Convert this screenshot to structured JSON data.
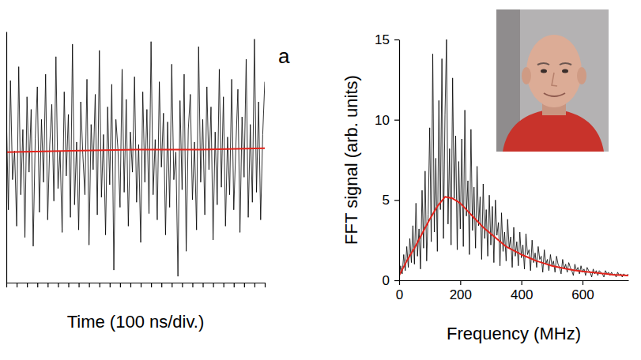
{
  "chart_data": [
    {
      "type": "line",
      "annotations": [
        "a"
      ],
      "xlabel": "Time (100 ns/div.)",
      "xlim": [
        0,
        1000
      ],
      "ylim": [
        -1,
        1
      ],
      "xticks": [
        0,
        40,
        80,
        120,
        160,
        200,
        240,
        280,
        320,
        360,
        400,
        440,
        480,
        520,
        560,
        600,
        640,
        680,
        720,
        760,
        800,
        840,
        880,
        920,
        960,
        1000
      ],
      "tick_labels": false,
      "series": [
        {
          "color": "#000000",
          "x": [
            0,
            8,
            16,
            24,
            32,
            40,
            48,
            56,
            64,
            72,
            80,
            88,
            96,
            104,
            112,
            120,
            128,
            136,
            144,
            152,
            160,
            168,
            176,
            184,
            192,
            200,
            208,
            216,
            224,
            232,
            240,
            248,
            256,
            264,
            272,
            280,
            288,
            296,
            304,
            312,
            320,
            328,
            336,
            344,
            352,
            360,
            368,
            376,
            384,
            392,
            400,
            408,
            416,
            424,
            432,
            440,
            448,
            456,
            464,
            472,
            480,
            488,
            496,
            504,
            512,
            520,
            528,
            536,
            544,
            552,
            560,
            568,
            576,
            584,
            592,
            600,
            608,
            616,
            624,
            632,
            640,
            648,
            656,
            664,
            672,
            680,
            688,
            696,
            704,
            712,
            720,
            728,
            736,
            744,
            752,
            760,
            768,
            776,
            784,
            792,
            800,
            808,
            816,
            824,
            832,
            840,
            848,
            856,
            864,
            872,
            880,
            888,
            896,
            904,
            912,
            920,
            928,
            936,
            944,
            952,
            960,
            968,
            976,
            984,
            992,
            1000
          ],
          "values": [
            0.35,
            -0.42,
            0.61,
            -0.18,
            0.05,
            -0.55,
            0.72,
            -0.3,
            0.22,
            -0.64,
            0.48,
            -0.12,
            0.38,
            -0.71,
            0.15,
            0.56,
            -0.44,
            0.3,
            -0.2,
            0.66,
            -0.5,
            0.1,
            0.42,
            -0.35,
            0.8,
            -0.25,
            0.05,
            -0.6,
            0.52,
            -0.15,
            0.34,
            -0.48,
            0.9,
            -0.38,
            0.12,
            -0.58,
            0.44,
            0.02,
            -0.3,
            0.62,
            -0.7,
            0.26,
            -0.1,
            0.5,
            -0.46,
            0.85,
            -0.32,
            0.18,
            -0.62,
            0.4,
            -0.22,
            0.58,
            -0.9,
            0.3,
            0.06,
            -0.4,
            0.7,
            -0.28,
            0.46,
            -0.55,
            0.2,
            -0.12,
            0.64,
            -0.36,
            0.1,
            -0.68,
            0.52,
            -0.2,
            0.38,
            -0.45,
            0.92,
            -0.3,
            0.14,
            -0.5,
            0.6,
            -0.08,
            0.35,
            -0.62,
            0.28,
            -0.4,
            0.74,
            -0.18,
            0.04,
            -0.95,
            0.45,
            -0.26,
            0.66,
            -0.75,
            0.22,
            0.5,
            -0.34,
            0.12,
            -0.58,
            0.88,
            -0.2,
            0.3,
            -0.46,
            0.56,
            -0.1,
            0.4,
            -0.66,
            0.2,
            -0.38,
            0.7,
            -0.24,
            0.48,
            -0.55,
            0.16,
            -0.3,
            0.62,
            -0.42,
            0.08,
            0.54,
            -0.6,
            0.32,
            -0.16,
            0.78,
            -0.48,
            0.26,
            -0.36,
            0.94,
            -0.28,
            0.44,
            -0.5,
            0.18,
            0.6
          ]
        },
        {
          "color": "#e3231b",
          "x": [
            0,
            250,
            500,
            750,
            1000
          ],
          "values": [
            0.04,
            0.05,
            0.06,
            0.06,
            0.07
          ]
        }
      ]
    },
    {
      "type": "line",
      "xlabel": "Frequency (MHz)",
      "ylabel": "FFT signal (arb. units)",
      "xlim": [
        0,
        750
      ],
      "ylim": [
        0,
        15
      ],
      "xticks": [
        0,
        200,
        400,
        600
      ],
      "yticks": [
        0,
        5,
        10,
        15
      ],
      "series": [
        {
          "color": "#000000",
          "x": [
            0,
            5,
            10,
            15,
            20,
            25,
            30,
            35,
            40,
            45,
            50,
            55,
            60,
            65,
            70,
            75,
            80,
            85,
            90,
            95,
            100,
            105,
            110,
            115,
            120,
            125,
            130,
            135,
            140,
            145,
            150,
            155,
            160,
            165,
            170,
            175,
            180,
            185,
            190,
            195,
            200,
            205,
            210,
            215,
            220,
            225,
            230,
            235,
            240,
            245,
            250,
            255,
            260,
            265,
            270,
            275,
            280,
            285,
            290,
            295,
            300,
            305,
            310,
            315,
            320,
            325,
            330,
            335,
            340,
            345,
            350,
            355,
            360,
            365,
            370,
            375,
            380,
            385,
            390,
            395,
            400,
            405,
            410,
            415,
            420,
            425,
            430,
            435,
            440,
            445,
            450,
            455,
            460,
            465,
            470,
            475,
            480,
            485,
            490,
            495,
            500,
            505,
            510,
            515,
            520,
            525,
            530,
            535,
            540,
            545,
            550,
            555,
            560,
            565,
            570,
            575,
            580,
            585,
            590,
            595,
            600,
            605,
            610,
            615,
            620,
            625,
            630,
            635,
            640,
            645,
            650,
            655,
            660,
            665,
            670,
            675,
            680,
            685,
            690,
            695,
            700,
            705,
            710,
            715,
            720,
            725,
            730,
            735,
            740,
            745,
            750
          ],
          "values": [
            0.2,
            0.9,
            0.4,
            1.6,
            0.6,
            2.1,
            0.8,
            2.6,
            1.1,
            3.4,
            1.0,
            4.8,
            1.5,
            3.2,
            0.7,
            5.6,
            2.0,
            6.8,
            1.2,
            4.1,
            9.5,
            2.4,
            14.1,
            3.0,
            7.6,
            1.8,
            11.2,
            4.4,
            13.8,
            2.6,
            10.3,
            15.0,
            3.5,
            8.2,
            2.2,
            12.6,
            5.1,
            9.0,
            1.9,
            7.4,
            3.2,
            8.8,
            2.1,
            10.6,
            4.0,
            6.2,
            1.6,
            9.4,
            3.1,
            5.8,
            2.0,
            7.1,
            3.4,
            5.2,
            1.3,
            6.0,
            2.6,
            4.4,
            1.5,
            5.3,
            2.2,
            4.6,
            1.1,
            5.0,
            2.8,
            3.6,
            0.9,
            4.2,
            1.8,
            3.0,
            1.2,
            3.8,
            2.0,
            2.7,
            0.8,
            3.3,
            1.5,
            2.4,
            0.9,
            3.0,
            1.4,
            2.2,
            0.7,
            2.9,
            1.6,
            1.9,
            0.6,
            2.5,
            1.1,
            1.7,
            0.8,
            2.1,
            1.3,
            1.5,
            0.5,
            1.9,
            1.0,
            1.3,
            0.6,
            1.6,
            0.9,
            1.2,
            0.5,
            1.5,
            1.0,
            0.8,
            0.4,
            1.3,
            0.7,
            1.0,
            0.5,
            1.1,
            0.8,
            0.6,
            0.3,
            1.0,
            0.6,
            0.8,
            0.4,
            0.9,
            0.5,
            0.7,
            0.3,
            0.8,
            0.6,
            0.5,
            0.2,
            0.7,
            0.4,
            0.6,
            0.3,
            0.6,
            0.5,
            0.4,
            0.2,
            0.6,
            0.4,
            0.5,
            0.3,
            0.5,
            0.3,
            0.4,
            0.2,
            0.5,
            0.3,
            0.4,
            0.2,
            0.4,
            0.3,
            0.3,
            0.4
          ]
        },
        {
          "color": "#e3231b",
          "x": [
            0,
            25,
            50,
            75,
            100,
            125,
            150,
            175,
            200,
            225,
            250,
            275,
            300,
            325,
            350,
            375,
            400,
            425,
            450,
            475,
            500,
            525,
            550,
            575,
            600,
            625,
            650,
            675,
            700,
            725,
            750
          ],
          "values": [
            0.3,
            1.2,
            2.0,
            2.9,
            3.8,
            4.6,
            5.2,
            5.1,
            4.8,
            4.3,
            3.8,
            3.3,
            2.9,
            2.5,
            2.1,
            1.85,
            1.6,
            1.4,
            1.2,
            1.05,
            0.9,
            0.8,
            0.7,
            0.62,
            0.55,
            0.5,
            0.45,
            0.4,
            0.35,
            0.32,
            0.3
          ]
        }
      ]
    }
  ]
}
